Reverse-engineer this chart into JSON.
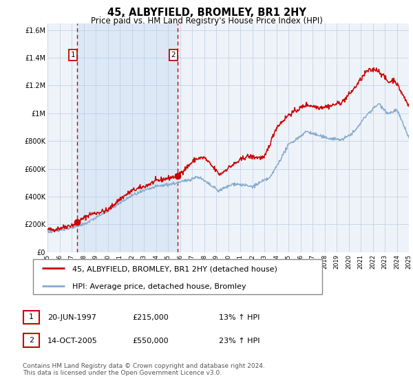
{
  "title": "45, ALBYFIELD, BROMLEY, BR1 2HY",
  "subtitle": "Price paid vs. HM Land Registry's House Price Index (HPI)",
  "x_start_year": 1995,
  "x_end_year": 2025,
  "ylim": [
    0,
    1650000
  ],
  "yticks": [
    0,
    200000,
    400000,
    600000,
    800000,
    1000000,
    1200000,
    1400000,
    1600000
  ],
  "ytick_labels": [
    "£0",
    "£200K",
    "£400K",
    "£600K",
    "£800K",
    "£1M",
    "£1.2M",
    "£1.4M",
    "£1.6M"
  ],
  "red_line_color": "#cc0000",
  "blue_line_color": "#88aacc",
  "shade_color": "#dce8f5",
  "grid_color": "#bbccdd",
  "bg_color": "#eef3fa",
  "purchase1_year": 1997.47,
  "purchase1_price": 215000,
  "purchase1_date": "20-JUN-1997",
  "purchase1_hpi": "13% ↑ HPI",
  "purchase2_year": 2005.79,
  "purchase2_price": 550000,
  "purchase2_date": "14-OCT-2005",
  "purchase2_hpi": "23% ↑ HPI",
  "legend_line1": "45, ALBYFIELD, BROMLEY, BR1 2HY (detached house)",
  "legend_line2": "HPI: Average price, detached house, Bromley",
  "footer": "Contains HM Land Registry data © Crown copyright and database right 2024.\nThis data is licensed under the Open Government Licence v3.0.",
  "title_fontsize": 10.5,
  "subtitle_fontsize": 8.5,
  "tick_fontsize": 7,
  "legend_fontsize": 8,
  "table_fontsize": 8,
  "footer_fontsize": 6.5
}
